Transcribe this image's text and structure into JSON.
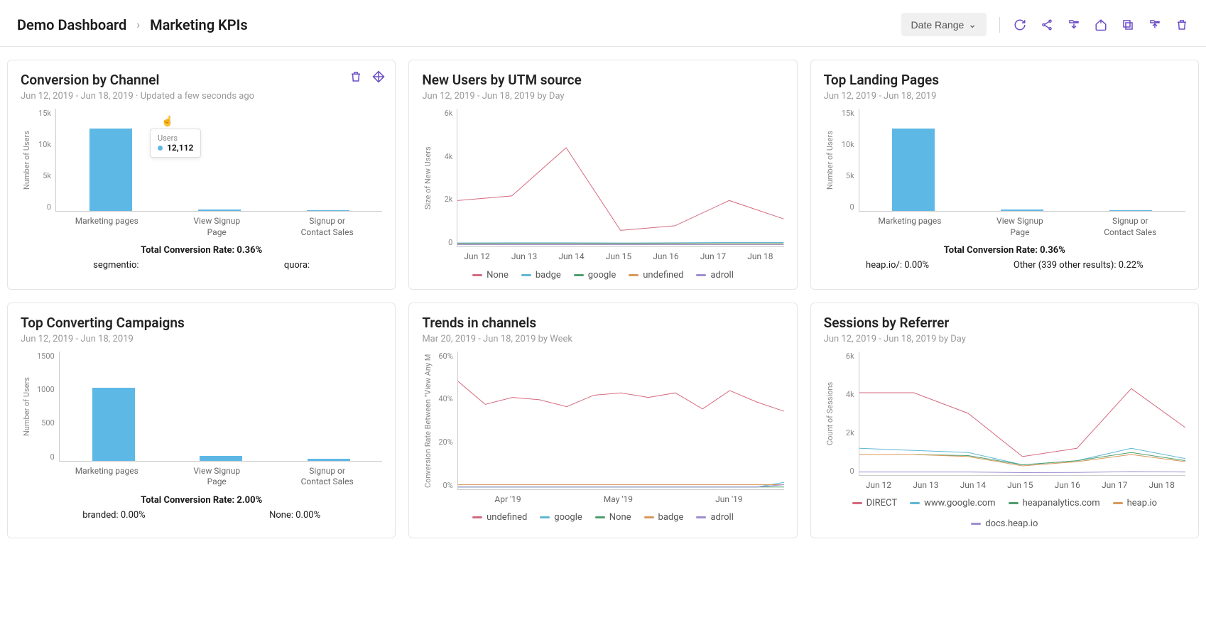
{
  "header": {
    "breadcrumb_root": "Demo Dashboard",
    "breadcrumb_current": "Marketing KPIs",
    "date_range_label": "Date Range"
  },
  "colors": {
    "bar": "#5eb8e6",
    "grid": "#e8e8e8",
    "none_red": "#d46a7e",
    "badge_blue": "#5fb7d4",
    "google_green": "#4f9e6f",
    "undefined_orange": "#d8995a",
    "adroll_purple": "#9f8dd0",
    "direct_red": "#d46a7e",
    "wwwgoogle_blue": "#5fb7d4",
    "heapanalytics_green": "#4f9e6f",
    "heapio_orange": "#d8995a",
    "docsheap_purple": "#9f8dd0"
  },
  "cards": {
    "conversion": {
      "title": "Conversion by Channel",
      "sub": "Jun 12, 2019 - Jun 18, 2019 · Updated a few seconds ago",
      "y_label": "Number of Users",
      "y_ticks": [
        "15k",
        "10k",
        "5k",
        "0"
      ],
      "y_max": 15000,
      "bars": [
        {
          "label": "Marketing pages",
          "value": 12112
        },
        {
          "label": "View Signup Page",
          "value": 200
        },
        {
          "label": "Signup or Contact Sales",
          "value": 150
        }
      ],
      "tooltip": {
        "label": "Users",
        "value": "12,112"
      },
      "footer_main": "Total Conversion Rate: 0.36%",
      "footer_left": "segmentio:",
      "footer_right": "quora:"
    },
    "newusers": {
      "title": "New Users by UTM source",
      "sub": "Jun 12, 2019 - Jun 18, 2019 by Day",
      "y_label": "Size of New Users",
      "y_ticks": [
        "6k",
        "4k",
        "2k",
        "0"
      ],
      "y_max": 6000,
      "x_labels": [
        "Jun 12",
        "Jun 13",
        "Jun 14",
        "Jun 15",
        "Jun 16",
        "Jun 17",
        "Jun 18"
      ],
      "series": [
        {
          "name": "None",
          "color": "#d46a7e",
          "values": [
            2000,
            2200,
            4300,
            700,
            900,
            2000,
            1200
          ]
        },
        {
          "name": "badge",
          "color": "#5fb7d4",
          "values": [
            150,
            160,
            160,
            150,
            160,
            170,
            170
          ]
        },
        {
          "name": "google",
          "color": "#4f9e6f",
          "values": [
            120,
            120,
            120,
            120,
            120,
            120,
            120
          ]
        },
        {
          "name": "undefined",
          "color": "#d8995a",
          "values": [
            100,
            100,
            100,
            100,
            100,
            100,
            100
          ]
        },
        {
          "name": "adroll",
          "color": "#9f8dd0",
          "values": [
            80,
            80,
            80,
            80,
            80,
            80,
            80
          ]
        }
      ],
      "legend": [
        "None",
        "badge",
        "google",
        "undefined",
        "adroll"
      ]
    },
    "landing": {
      "title": "Top Landing Pages",
      "sub": "Jun 12, 2019 - Jun 18, 2019",
      "y_label": "Number of Users",
      "y_ticks": [
        "15k",
        "10k",
        "5k",
        "0"
      ],
      "y_max": 15000,
      "bars": [
        {
          "label": "Marketing pages",
          "value": 12100
        },
        {
          "label": "View Signup Page",
          "value": 200
        },
        {
          "label": "Signup or Contact Sales",
          "value": 150
        }
      ],
      "footer_main": "Total Conversion Rate: 0.36%",
      "footer_left": "heap.io/: 0.00%",
      "footer_right": "Other (339 other results): 0.22%"
    },
    "campaigns": {
      "title": "Top Converting Campaigns",
      "sub": "Jun 12, 2019 - Jun 18, 2019",
      "y_label": "Number of Users",
      "y_ticks": [
        "1500",
        "1000",
        "500",
        "0"
      ],
      "y_max": 1500,
      "bars": [
        {
          "label": "Marketing pages",
          "value": 1000
        },
        {
          "label": "View Signup Page",
          "value": 60
        },
        {
          "label": "Signup or Contact Sales",
          "value": 30
        }
      ],
      "footer_main": "Total Conversion Rate: 2.00%",
      "footer_left": "branded: 0.00%",
      "footer_right": "None: 0.00%"
    },
    "trends": {
      "title": "Trends in channels",
      "sub": "Mar 20, 2019 - Jun 18, 2019 by Week",
      "y_label": "Conversion Rate Between \"View Any M",
      "y_ticks": [
        "60%",
        "40%",
        "20%",
        "0%"
      ],
      "y_max": 60,
      "x_labels": [
        "Apr '19",
        "May '19",
        "Jun '19"
      ],
      "series": [
        {
          "name": "undefined",
          "color": "#d46a7e",
          "values": [
            47,
            37,
            40,
            39,
            36,
            41,
            42,
            40,
            42,
            35,
            43,
            38,
            34
          ]
        },
        {
          "name": "google",
          "color": "#5fb7d4",
          "values": [
            1,
            1,
            1,
            1,
            1,
            1,
            1,
            1,
            1,
            1,
            1,
            1,
            3
          ]
        },
        {
          "name": "None",
          "color": "#4f9e6f",
          "values": [
            1,
            1,
            1,
            1,
            1,
            1,
            1,
            1,
            1,
            1,
            1,
            1,
            1
          ]
        },
        {
          "name": "badge",
          "color": "#d8995a",
          "values": [
            2,
            2,
            2,
            2,
            2,
            2,
            2,
            2,
            2,
            2,
            2,
            2,
            2
          ]
        },
        {
          "name": "adroll",
          "color": "#9f8dd0",
          "values": [
            1,
            1,
            1,
            1,
            1,
            1,
            1,
            1,
            1,
            1,
            1,
            1,
            2
          ]
        }
      ],
      "legend": [
        "undefined",
        "google",
        "None",
        "badge",
        "adroll"
      ]
    },
    "sessions": {
      "title": "Sessions by Referrer",
      "sub": "Jun 12, 2019 - Jun 18, 2019 by Day",
      "y_label": "Count of Sessions",
      "y_ticks": [
        "6k",
        "4k",
        "2k",
        "0"
      ],
      "y_max": 6000,
      "x_labels": [
        "Jun 12",
        "Jun 13",
        "Jun 14",
        "Jun 15",
        "Jun 16",
        "Jun 17",
        "Jun 18"
      ],
      "series": [
        {
          "name": "DIRECT",
          "color": "#d46a7e",
          "values": [
            4000,
            4000,
            3000,
            900,
            1300,
            4200,
            2300
          ]
        },
        {
          "name": "www.google.com",
          "color": "#5fb7d4",
          "values": [
            1300,
            1200,
            1100,
            500,
            700,
            1300,
            800
          ]
        },
        {
          "name": "heapanalytics.com",
          "color": "#4f9e6f",
          "values": [
            1000,
            1000,
            950,
            500,
            700,
            1100,
            700
          ]
        },
        {
          "name": "heap.io",
          "color": "#d8995a",
          "values": [
            1000,
            1000,
            900,
            450,
            650,
            1000,
            650
          ]
        },
        {
          "name": "docs.heap.io",
          "color": "#9f8dd0",
          "values": [
            150,
            150,
            150,
            120,
            130,
            170,
            150
          ]
        }
      ],
      "legend": [
        "DIRECT",
        "www.google.com",
        "heapanalytics.com",
        "heap.io",
        "docs.heap.io"
      ]
    }
  }
}
